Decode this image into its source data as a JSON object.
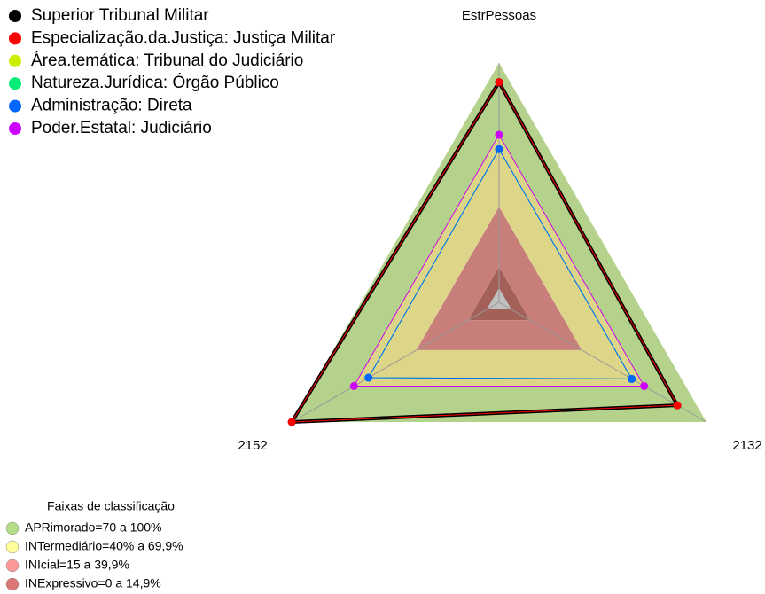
{
  "chart_data": {
    "type": "radar",
    "categories": [
      "EstrPessoas",
      "2132",
      "2152"
    ],
    "rlim": [
      0,
      100
    ],
    "series": [
      {
        "name": "Superior Tribunal Militar",
        "color": "#000000",
        "values": [
          92,
          86,
          100
        ]
      },
      {
        "name": "Especialização.da.Justiça: Justiça Militar",
        "color": "#ff0000",
        "values": [
          92,
          86,
          100
        ]
      },
      {
        "name": "Área.temática: Tribunal do Judiciário",
        "color": "#ccee00",
        "values": [
          70,
          70,
          70
        ]
      },
      {
        "name": "Natureza.Jurídica: Órgão Público",
        "color": "#00ee77",
        "values": [
          64,
          64,
          63
        ]
      },
      {
        "name": "Administração: Direta",
        "color": "#0066ff",
        "values": [
          64,
          64,
          63
        ]
      },
      {
        "name": "Poder.Estatal: Judiciário",
        "color": "#cc00ff",
        "values": [
          70,
          70,
          70
        ]
      }
    ],
    "bands_title": "Faixas de classificação",
    "bands": [
      {
        "label": "APRimorado=70 a 100%",
        "color": "#b5dd88",
        "from": 70,
        "to": 100
      },
      {
        "label": "INTermediário=40% a 69,9%",
        "color": "#ffff99",
        "from": 40,
        "to": 69.9
      },
      {
        "label": "INIcial=15 a 39,9%",
        "color": "#ff9999",
        "from": 15,
        "to": 39.9
      },
      {
        "label": "INExpressivo=0 a 14,9%",
        "color": "#dd7777",
        "from": 0,
        "to": 14.9
      }
    ]
  }
}
